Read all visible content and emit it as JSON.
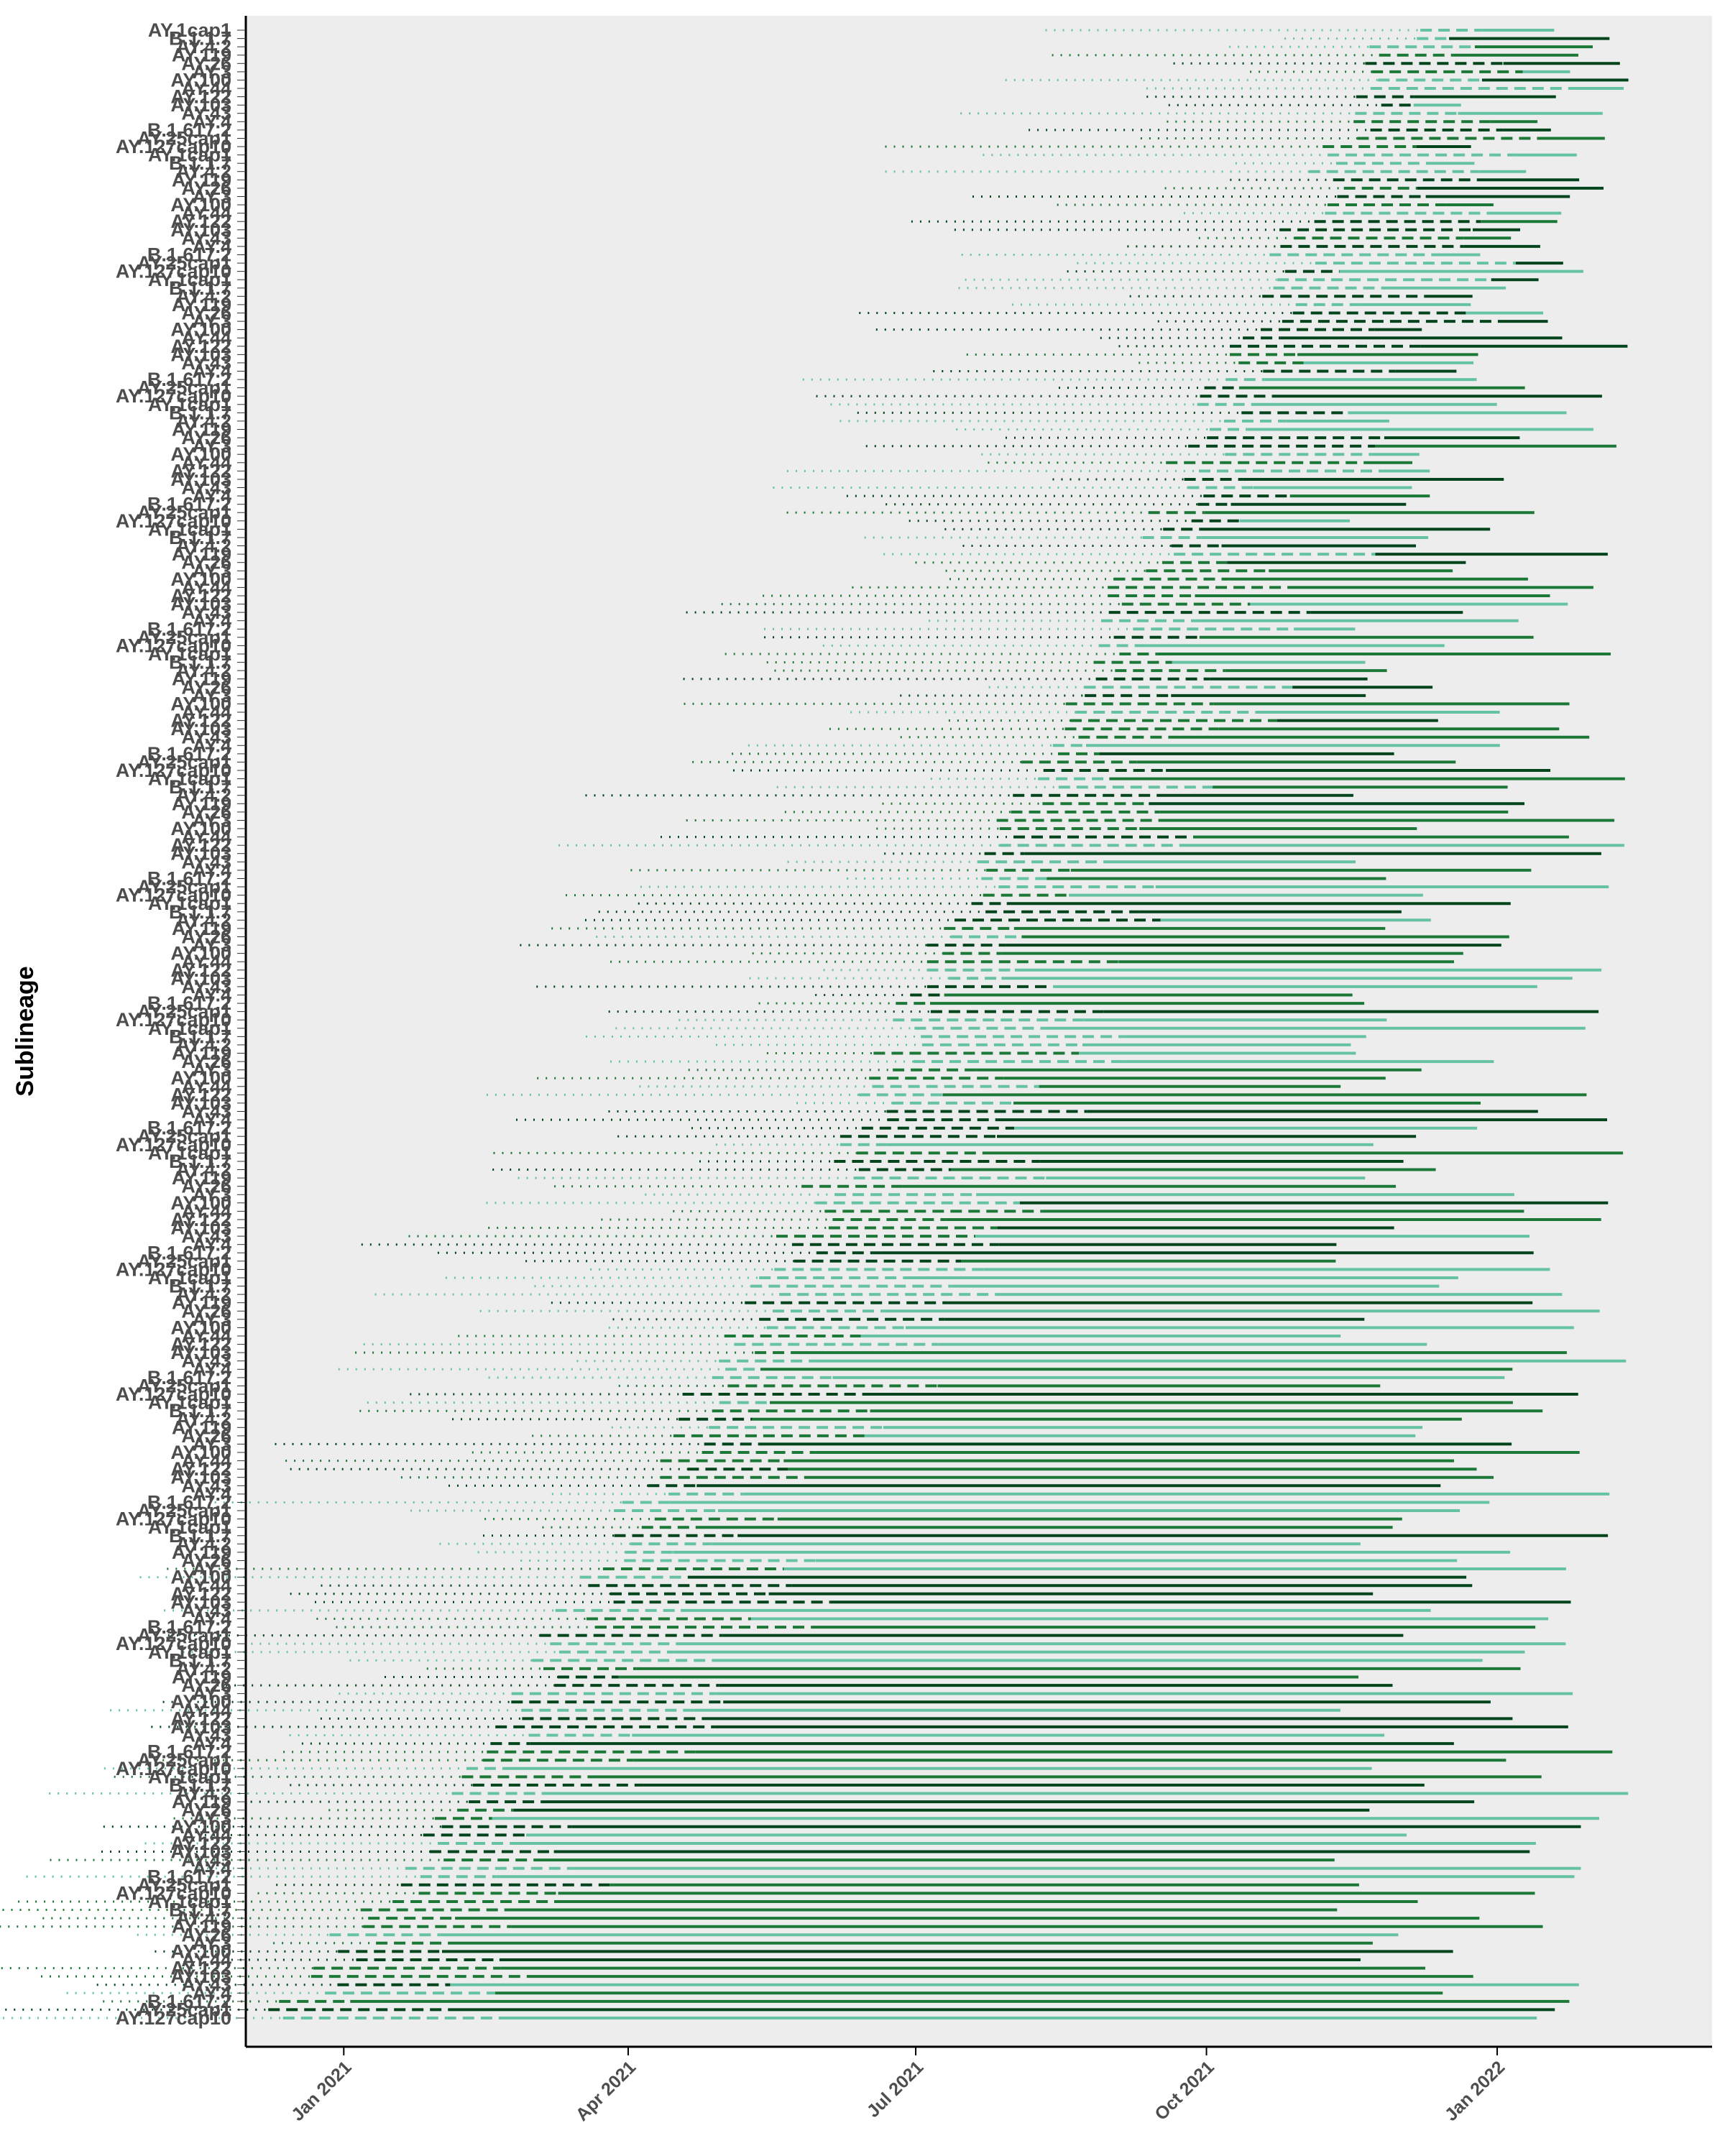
{
  "chart_data": {
    "type": "line",
    "ylabel": "Sublineage",
    "xlabel": "",
    "title": "",
    "x_axis": {
      "type": "date",
      "tick_labels": [
        "Jan 2021",
        "Apr 2021",
        "Jul 2021",
        "Oct 2021",
        "Jan 2022"
      ],
      "tick_dates": [
        "2021-01-01",
        "2021-04-01",
        "2021-07-01",
        "2021-10-01",
        "2022-01-01"
      ],
      "range": [
        "2020-12-01",
        "2022-03-10"
      ]
    },
    "grid": false,
    "legend": "none",
    "panel_background": "#ededed",
    "line_types": [
      "dotted",
      "dashed",
      "solid"
    ],
    "colors": [
      "#66c2a5",
      "#1b7837",
      "#00441b"
    ],
    "sublineage_labels_sample": [
      "AY.127cap10",
      "AY.25cap1",
      "B.1.617.2",
      "AY.4",
      "AY.43",
      "AY.103",
      "AY.122",
      "AY.44",
      "AY.100",
      "AY.3",
      "AY.26",
      "AY.119",
      "AY.4.2",
      "B.1.1.7",
      "AY.1cap1"
    ],
    "n_sublineages": 240,
    "series_note_values": {
      "first_detection_range": [
        "2020-12-10",
        "2021-12-01"
      ],
      "last_detection_range": [
        "2021-11-20",
        "2022-02-25"
      ],
      "overall_trend": "later-emerging sublineages appear toward the top"
    }
  }
}
